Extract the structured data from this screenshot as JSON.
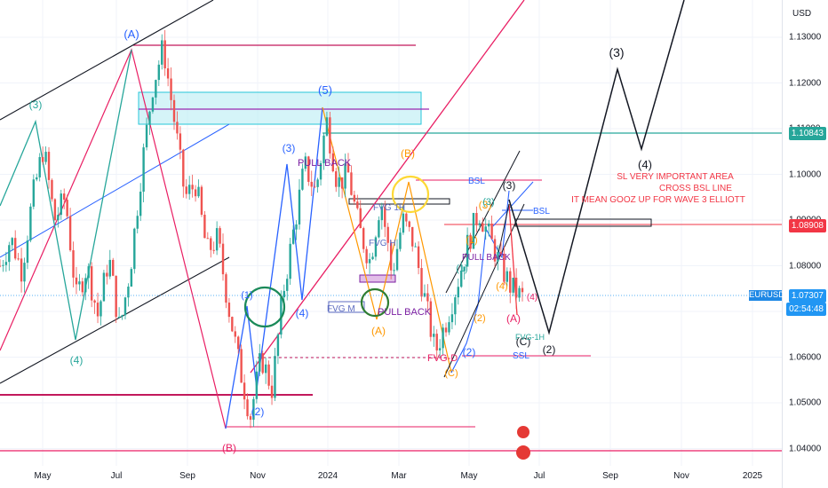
{
  "currency": "USD",
  "symbol": "EURUSD",
  "price_tags": {
    "current": "1.07307",
    "countdown": "02:54:48",
    "green_level": "1.10843",
    "red_level": "1.08908"
  },
  "colors": {
    "up": "#26a69a",
    "down": "#ef5350",
    "current": "#2196f3",
    "green_tag": "#26a69a",
    "red_tag": "#f23645",
    "pink": "#e91e63",
    "wave_blue": "#2962ff"
  },
  "chart_data": {
    "type": "candlestick",
    "y_ticks": [
      "1.13000",
      "1.12000",
      "1.11000",
      "1.10000",
      "1.09000",
      "1.08000",
      "1.07000",
      "1.06000",
      "1.05000",
      "1.04000"
    ],
    "x_ticks": [
      "May",
      "Jul",
      "Sep",
      "Nov",
      "2024",
      "Mar",
      "May",
      "Jul",
      "Sep",
      "Nov",
      "2025"
    ],
    "ylim": [
      1.034,
      1.137
    ],
    "swing_path": [
      1.08,
      1.086,
      1.079,
      1.095,
      1.106,
      1.09,
      1.095,
      1.073,
      1.08,
      1.069,
      1.082,
      1.066,
      1.08,
      1.101,
      1.119,
      1.128,
      1.112,
      1.095,
      1.098,
      1.083,
      1.086,
      1.071,
      1.058,
      1.047,
      1.06,
      1.053,
      1.074,
      1.088,
      1.102,
      1.096,
      1.112,
      1.098,
      1.1,
      1.088,
      1.081,
      1.095,
      1.078,
      1.09,
      1.085,
      1.073,
      1.061,
      1.068,
      1.076,
      1.085,
      1.092,
      1.086,
      1.08,
      1.075,
      1.073
    ],
    "forecast_path": [
      1.09,
      1.066,
      1.095,
      1.122,
      1.104,
      1.148
    ],
    "annotations": {
      "wave_labels": [
        "(3)",
        "(4)",
        "(A)",
        "(5)",
        "(B)",
        "(1)",
        "(2)",
        "(3)",
        "(4)",
        "(5)",
        "(B)",
        "(A)",
        "(1)",
        "(2)",
        "(C)",
        "(3)",
        "(4)",
        "(A)",
        "(2)",
        "(3)",
        "(4)",
        "(C)",
        "(2)",
        "(1)",
        "(3)",
        "(5)",
        "(3)",
        "(4)"
      ],
      "text_notes": [
        "PULL BACK",
        "FVG M",
        "PULL BACK",
        "FVG 1H",
        "FVG H",
        "BSL",
        "BSL",
        "PULL BACK",
        "FVG-1H",
        "FVG-D",
        "SSL"
      ],
      "note_lines": [
        "SL VERY IMPORTANT AREA",
        "CROSS BSL LINE",
        "IT MEAN GOOZ UP FOR WAVE 3 ELLIOTT"
      ]
    }
  }
}
